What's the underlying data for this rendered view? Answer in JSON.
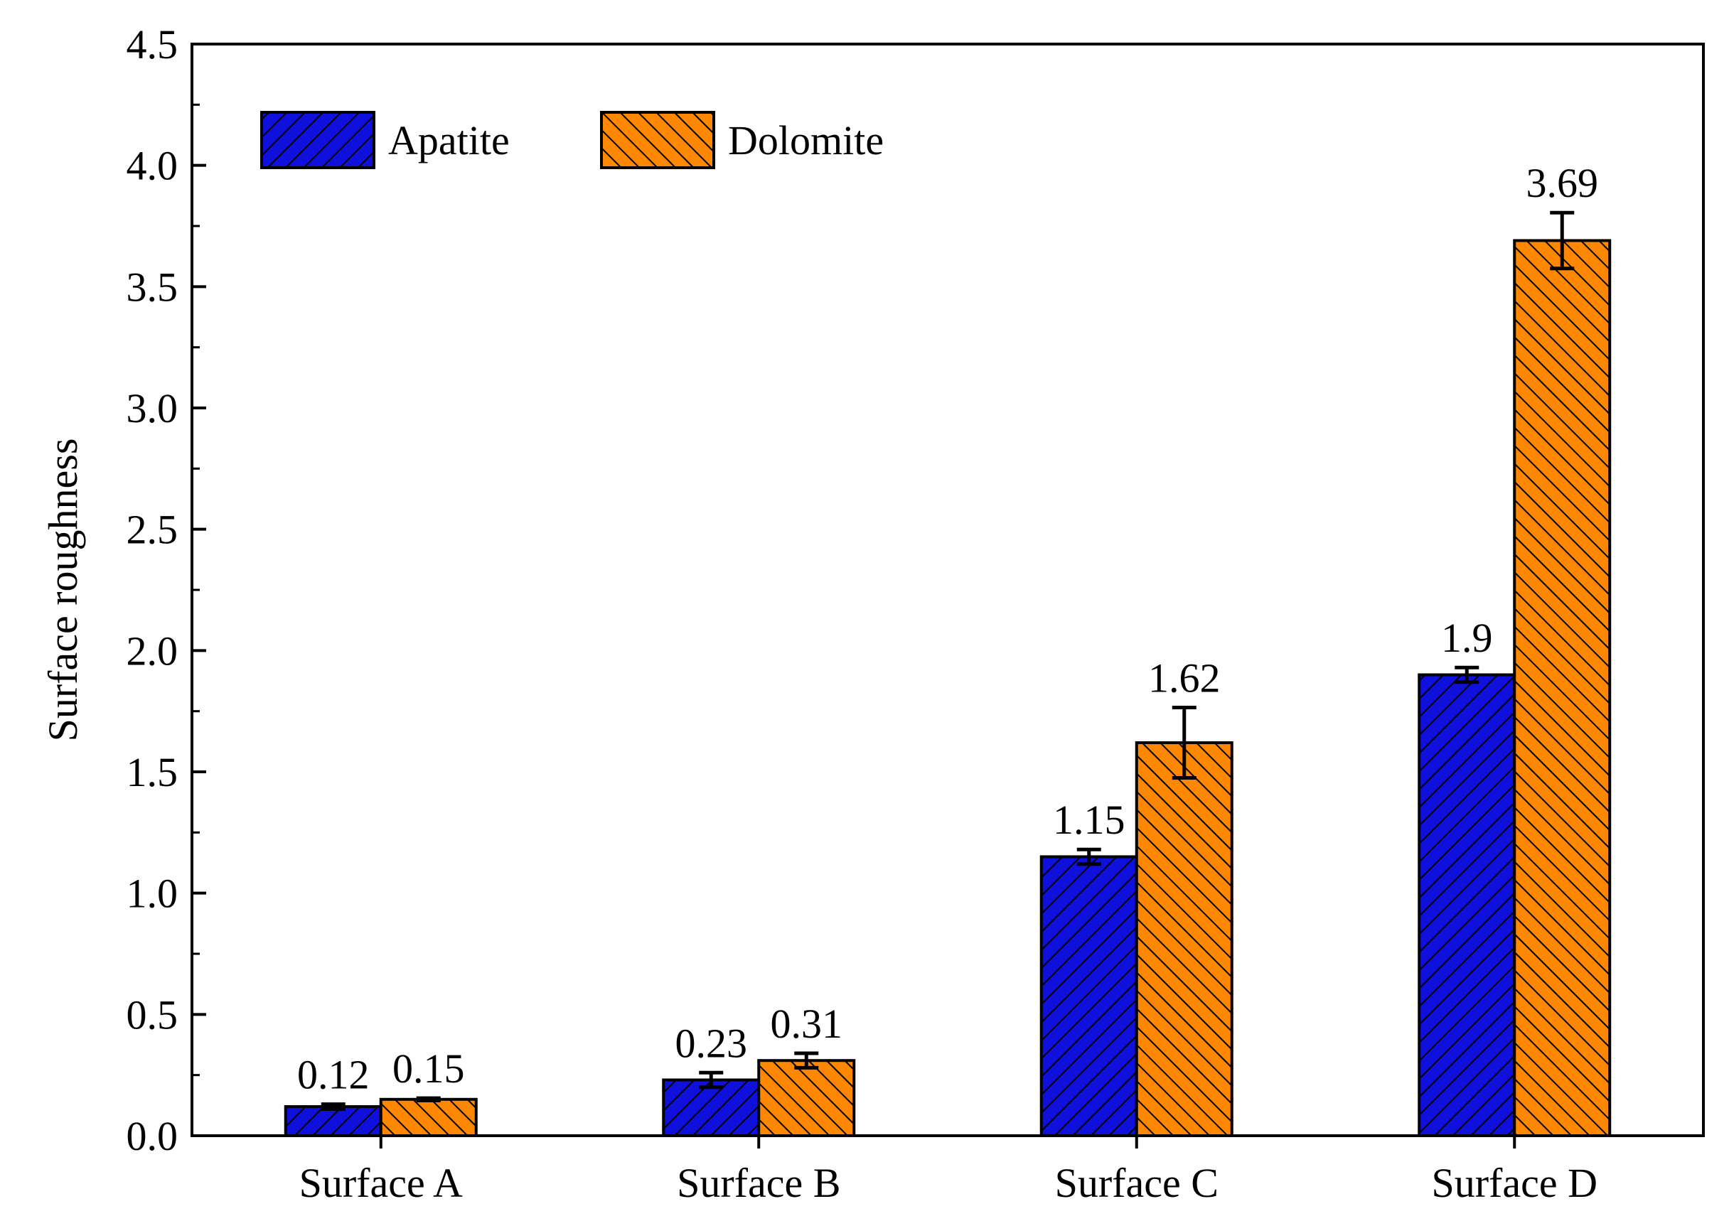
{
  "chart_data": {
    "type": "bar",
    "title": "",
    "xlabel": "",
    "ylabel": "Surface roughness",
    "ylim": [
      0,
      4.5
    ],
    "yticks": [
      "0.0",
      "0.5",
      "1.0",
      "1.5",
      "2.0",
      "2.5",
      "3.0",
      "3.5",
      "4.0",
      "4.5"
    ],
    "categories": [
      "Surface A",
      "Surface B",
      "Surface C",
      "Surface D"
    ],
    "series": [
      {
        "name": "Apatite",
        "values": [
          0.12,
          0.23,
          1.15,
          1.9
        ],
        "errors": [
          0.01,
          0.03,
          0.03,
          0.03
        ],
        "labels": [
          "0.12",
          "0.23",
          "1.15",
          "1.9"
        ],
        "color": "#1010dd",
        "hatch": "forward-diagonal"
      },
      {
        "name": "Dolomite",
        "values": [
          0.15,
          0.31,
          1.62,
          3.69
        ],
        "errors": [
          0.005,
          0.03,
          0.145,
          0.115
        ],
        "labels": [
          "0.15",
          "0.31",
          "1.62",
          "3.69"
        ],
        "color": "#ff8800",
        "hatch": "back-diagonal"
      }
    ],
    "legend": "top-left",
    "grid": false
  }
}
